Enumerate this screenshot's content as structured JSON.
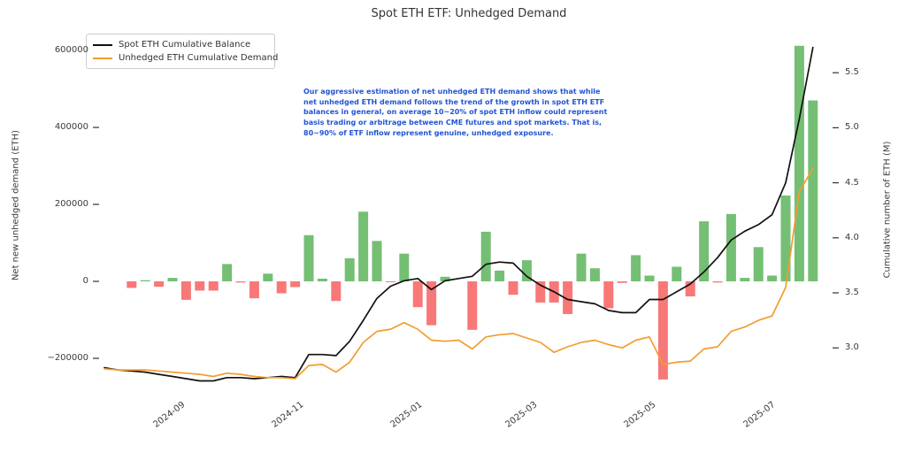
{
  "annotation": {
    "color": "#2155d4",
    "lines": [
      "Our aggressive estimation of net unhedged ETH demand shows that while",
      "net unhedged ETH demand follows the trend of the growth in spot ETH ETF",
      "balances in general, on average 10~20% of spot ETH inflow could represent",
      "basis trading or arbitrage between CME futures and spot markets. That is,",
      "80~90% of ETF inflow represent genuine, unhedged exposure."
    ]
  },
  "chart_data": {
    "type": "bar+line",
    "title": "Spot ETH ETF: Unhedged Demand",
    "grid": false,
    "legend_position": "upper left",
    "x": [
      "2024-07-29",
      "2024-08-05",
      "2024-08-12",
      "2024-08-19",
      "2024-08-26",
      "2024-09-02",
      "2024-09-09",
      "2024-09-16",
      "2024-09-23",
      "2024-09-30",
      "2024-10-07",
      "2024-10-14",
      "2024-10-21",
      "2024-10-28",
      "2024-11-04",
      "2024-11-11",
      "2024-11-18",
      "2024-11-25",
      "2024-12-02",
      "2024-12-09",
      "2024-12-16",
      "2024-12-23",
      "2024-12-30",
      "2025-01-06",
      "2025-01-13",
      "2025-01-20",
      "2025-01-27",
      "2025-02-03",
      "2025-02-10",
      "2025-02-17",
      "2025-02-24",
      "2025-03-03",
      "2025-03-10",
      "2025-03-17",
      "2025-03-24",
      "2025-03-31",
      "2025-04-07",
      "2025-04-14",
      "2025-04-21",
      "2025-04-28",
      "2025-05-05",
      "2025-05-12",
      "2025-05-19",
      "2025-05-26",
      "2025-06-02",
      "2025-06-09",
      "2025-06-16",
      "2025-06-23",
      "2025-06-30",
      "2025-07-07",
      "2025-07-14",
      "2025-07-21",
      "2025-07-28"
    ],
    "x_tick_labels": [
      "2024-09",
      "2024-11",
      "2025-01",
      "2025-03",
      "2025-05",
      "2025-07"
    ],
    "bar_series": {
      "name": "Net new unhedged demand (ETH)",
      "axis": "left",
      "positive_color": "#74bf74",
      "negative_color": "#f87878",
      "values": [
        0,
        0,
        -17000,
        3000,
        -14000,
        9000,
        -48000,
        -24000,
        -24000,
        45000,
        -3000,
        -44000,
        20000,
        -31000,
        -15000,
        120000,
        7000,
        -51000,
        60000,
        181000,
        105000,
        -2000,
        72000,
        -67000,
        -114000,
        12000,
        0,
        -126000,
        129000,
        28000,
        -35000,
        55000,
        -55000,
        -55000,
        -85000,
        72000,
        34000,
        -70000,
        -4000,
        68000,
        15000,
        -255000,
        38000,
        -39000,
        156000,
        -3000,
        175000,
        9000,
        89000,
        15000,
        223000,
        612000,
        470000
      ]
    },
    "line_series": [
      {
        "name": "Spot ETH Cumulative Balance",
        "color": "#111111",
        "axis": "right",
        "values": [
          2.82,
          2.8,
          2.79,
          2.78,
          2.76,
          2.74,
          2.72,
          2.7,
          2.7,
          2.73,
          2.73,
          2.72,
          2.73,
          2.74,
          2.73,
          2.94,
          2.94,
          2.93,
          3.06,
          3.25,
          3.45,
          3.56,
          3.61,
          3.63,
          3.53,
          3.61,
          3.63,
          3.65,
          3.76,
          3.78,
          3.77,
          3.65,
          3.57,
          3.51,
          3.44,
          3.42,
          3.4,
          3.34,
          3.32,
          3.32,
          3.44,
          3.44,
          3.51,
          3.58,
          3.69,
          3.82,
          3.98,
          4.06,
          4.12,
          4.21,
          4.5,
          5.08,
          5.73
        ]
      },
      {
        "name": "Unhedged ETH Cumulative Demand",
        "color": "#f39c2d",
        "axis": "right",
        "values": [
          2.81,
          2.8,
          2.8,
          2.8,
          2.79,
          2.78,
          2.77,
          2.76,
          2.74,
          2.77,
          2.76,
          2.74,
          2.73,
          2.73,
          2.72,
          2.84,
          2.85,
          2.78,
          2.87,
          3.05,
          3.15,
          3.17,
          3.23,
          3.17,
          3.07,
          3.06,
          3.07,
          2.99,
          3.1,
          3.12,
          3.13,
          3.09,
          3.05,
          2.96,
          3.01,
          3.05,
          3.07,
          3.03,
          3.0,
          3.07,
          3.1,
          2.85,
          2.87,
          2.88,
          2.99,
          3.01,
          3.15,
          3.19,
          3.25,
          3.29,
          3.55,
          4.42,
          4.63
        ]
      }
    ],
    "left_axis": {
      "label": "Net new unhedged demand (ETH)",
      "ticks": [
        600000,
        400000,
        200000,
        0,
        -200000
      ],
      "tick_labels": [
        "600000",
        "400000",
        "200000",
        "0",
        "−200000"
      ],
      "ylim": [
        -292000,
        639000
      ]
    },
    "right_axis": {
      "label": "Cumulative number of ETH (M)",
      "ticks": [
        5.5,
        5.0,
        4.5,
        4.0,
        3.5,
        3.0
      ],
      "tick_labels": [
        "5.5",
        "5.0",
        "4.5",
        "4.0",
        "3.5",
        "3.0"
      ],
      "ylim": [
        2.58,
        5.84
      ]
    }
  }
}
